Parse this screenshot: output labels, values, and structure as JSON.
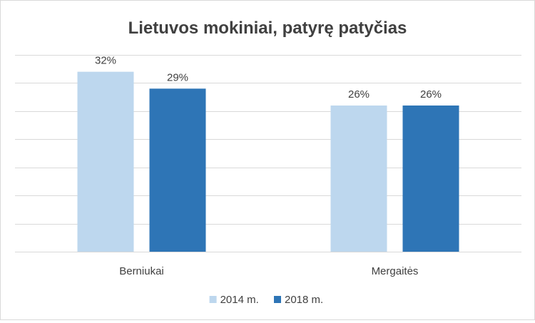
{
  "chart_data": {
    "type": "bar",
    "title": "Lietuvos mokiniai, patyrę patyčias",
    "categories": [
      "Berniukai",
      "Mergaitės"
    ],
    "series": [
      {
        "name": "2014 m.",
        "values": [
          32,
          26
        ],
        "labels": [
          "32%",
          "26%"
        ],
        "color": "#bdd7ee"
      },
      {
        "name": "2018 m.",
        "values": [
          29,
          26
        ],
        "labels": [
          "29%",
          "26%"
        ],
        "color": "#2e75b6"
      }
    ],
    "xlabel": "",
    "ylabel": "",
    "ylim": [
      0,
      35
    ],
    "grid": true,
    "legend": "bottom-center",
    "y_axis_tick_labels_visible": false
  },
  "colors": {
    "gridline": "#d9d9d9",
    "axis": "#d9d9d9",
    "text": "#404040",
    "title": "#404040"
  }
}
